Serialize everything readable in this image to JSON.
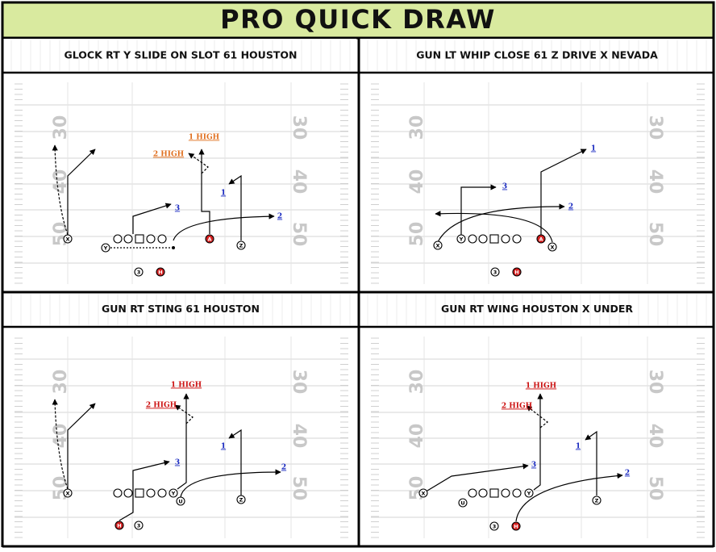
{
  "title": "PRO QUICK DRAW",
  "field_numbers": [
    "30",
    "40",
    "50"
  ],
  "plays": [
    {
      "title": "GLOCK RT Y SLIDE ON SLOT 61 HOUSTON",
      "players": [
        "X",
        "Y",
        "3",
        "H",
        "A",
        "Z"
      ],
      "labels": [
        "1 HIGH",
        "2 HIGH",
        "1",
        "2",
        "3"
      ]
    },
    {
      "title": "GUN LT WHIP CLOSE 61 Z DRIVE X NEVADA",
      "players": [
        "X",
        "Y",
        "A",
        "X",
        "3",
        "H"
      ],
      "labels": [
        "1",
        "2",
        "3"
      ]
    },
    {
      "title": "GUN RT STING 61 HOUSTON",
      "players": [
        "X",
        "Y",
        "U",
        "Z",
        "H",
        "3"
      ],
      "labels": [
        "1 HIGH",
        "2 HIGH",
        "1",
        "2",
        "3"
      ]
    },
    {
      "title": "GUN RT WING HOUSTON X UNDER",
      "players": [
        "X",
        "Y",
        "U",
        "Z",
        "3",
        "H"
      ],
      "labels": [
        "1 HIGH",
        "2 HIGH",
        "1",
        "2",
        "3"
      ]
    }
  ]
}
